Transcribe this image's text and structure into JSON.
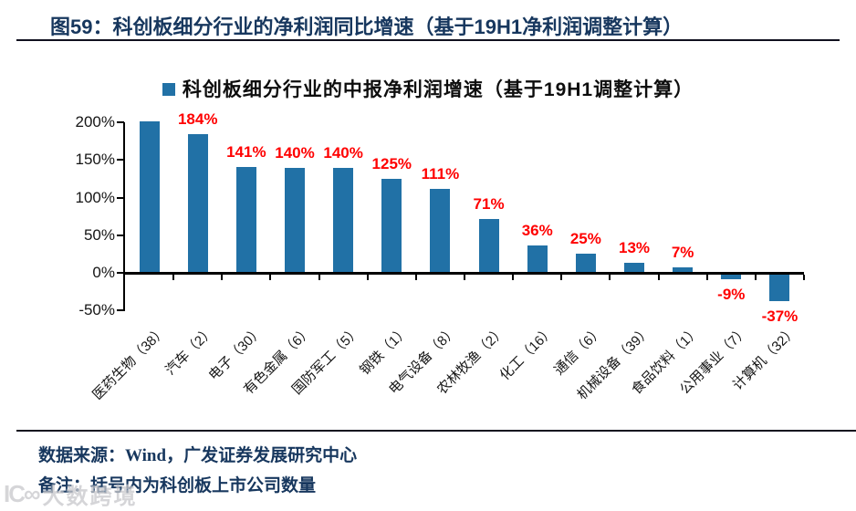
{
  "figure": {
    "title": "图59：科创板细分行业的净利润同比增速（基于19H1净利润调整计算）",
    "source": "数据来源：Wind，广发证券发展研究中心",
    "note": "备注：括号内为科创板上市公司数量",
    "watermark_text": "大数跨境",
    "watermark_icon_glyph": "IC∞"
  },
  "chart_data": {
    "type": "bar",
    "title": "科创板细分行业的中报净利润增速（基于19H1调整计算）",
    "categories": [
      "医药生物（38）",
      "汽车（2）",
      "电子（30）",
      "有色金属（6）",
      "国防军工（5）",
      "钢铁（1）",
      "电气设备（8）",
      "农林牧渔（2）",
      "化工（16）",
      "通信（6）",
      "机械设备（39）",
      "食品饮料（1）",
      "公用事业（7）",
      "计算机（32）"
    ],
    "values": [
      201,
      184,
      141,
      140,
      140,
      125,
      111,
      71,
      36,
      25,
      13,
      7,
      -9,
      -37
    ],
    "labels": [
      "",
      "184%",
      "141%",
      "140%",
      "140%",
      "125%",
      "111%",
      "71%",
      "36%",
      "25%",
      "13%",
      "7%",
      "-9%",
      "-37%"
    ],
    "ylabel": "",
    "xlabel": "",
    "ylim": [
      -50,
      200
    ],
    "yticks": [
      200,
      150,
      100,
      50,
      0,
      -50
    ],
    "ytick_labels": [
      "200%",
      "150%",
      "100%",
      "50%",
      "0%",
      "-50%"
    ],
    "grid": false,
    "legend_position": "top-center",
    "style": {
      "bar_color": "#2171A6",
      "value_label_color": "#FF0000",
      "axis_color": "#000000",
      "title_color": "#17375E"
    }
  }
}
